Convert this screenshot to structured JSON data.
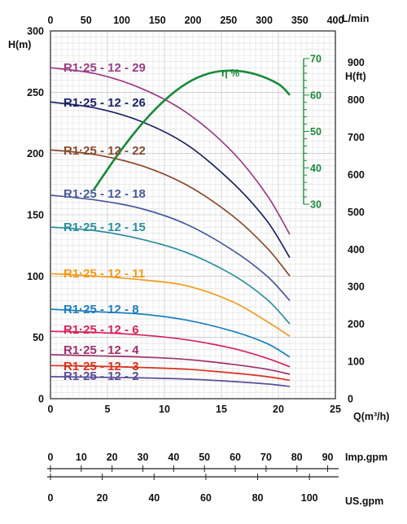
{
  "chart_data": {
    "type": "line",
    "xlabel": "Q(m³/h)",
    "ylabel": "H(m)",
    "x_ticks": [
      "0",
      "5",
      "10",
      "15",
      "20",
      "25"
    ],
    "y_ticks": [
      "0",
      "50",
      "100",
      "150",
      "200",
      "250",
      "300"
    ],
    "xlim": [
      0,
      25
    ],
    "ylim": [
      0,
      300
    ],
    "grid": true,
    "top_axis": {
      "label": "L/min",
      "ticks": [
        "0",
        "50",
        "100",
        "150",
        "200",
        "250",
        "300",
        "350",
        "400"
      ]
    },
    "right_axis": {
      "label": "H(ft)",
      "ticks": [
        "0",
        "100",
        "200",
        "300",
        "400",
        "500",
        "600",
        "700",
        "800",
        "900"
      ]
    },
    "efficiency_axis": {
      "label": "η %",
      "ticks": [
        "30",
        "40",
        "50",
        "60",
        "70"
      ],
      "range": [
        30,
        70
      ],
      "color": "#1a8a3a"
    },
    "bottom_scales": [
      {
        "label": "Imp.gpm",
        "ticks": [
          "0",
          "10",
          "20",
          "30",
          "40",
          "50",
          "60",
          "70",
          "80",
          "90"
        ]
      },
      {
        "label": "US.gpm",
        "ticks": [
          "0",
          "20",
          "40",
          "60",
          "80",
          "100"
        ]
      }
    ],
    "series": [
      {
        "name": "R1·25 - 12 - 29",
        "color": "#9b3d86",
        "x": [
          0,
          4,
          8,
          12,
          16,
          19,
          21
        ],
        "values": [
          270,
          265,
          253,
          233,
          201,
          166,
          134
        ]
      },
      {
        "name": "R1·25 - 12 - 26",
        "color": "#1d2466",
        "x": [
          0,
          4,
          8,
          12,
          16,
          19,
          21
        ],
        "values": [
          242,
          237,
          226,
          207,
          176,
          145,
          115
        ]
      },
      {
        "name": "R1·25 - 12 - 22",
        "color": "#8a4a2c",
        "x": [
          0,
          4,
          8,
          12,
          16,
          19,
          21
        ],
        "values": [
          203,
          199,
          190,
          174,
          149,
          123,
          100
        ]
      },
      {
        "name": "R1·25 - 12 - 18",
        "color": "#4a5a9c",
        "x": [
          0,
          4,
          8,
          12,
          16,
          19,
          21
        ],
        "values": [
          166,
          162,
          155,
          142,
          121,
          100,
          80
        ]
      },
      {
        "name": "R1·25 - 12 - 15",
        "color": "#2a8e9e",
        "x": [
          0,
          4,
          8,
          12,
          16,
          19,
          21
        ],
        "values": [
          140,
          137,
          130,
          119,
          101,
          81,
          61
        ]
      },
      {
        "name": "R1·25 - 12 - 11",
        "color": "#f39a1c",
        "x": [
          0,
          4,
          8,
          12,
          16,
          19,
          21
        ],
        "values": [
          102,
          100,
          97,
          92,
          79,
          63,
          51
        ]
      },
      {
        "name": "R1·25 - 12 - 8",
        "color": "#1c7fbf",
        "x": [
          0,
          4,
          8,
          12,
          16,
          19,
          21
        ],
        "values": [
          73,
          71,
          69,
          64,
          55,
          45,
          34
        ]
      },
      {
        "name": "R1·25 - 12 - 6",
        "color": "#d8235b",
        "x": [
          0,
          4,
          8,
          12,
          16,
          19,
          21
        ],
        "values": [
          55,
          54,
          52,
          48,
          41,
          33,
          26
        ]
      },
      {
        "name": "R1·25 - 12 - 4",
        "color": "#a0306e",
        "x": [
          0,
          4,
          8,
          12,
          16,
          19,
          21
        ],
        "values": [
          36,
          35,
          34,
          32,
          28,
          24,
          20
        ]
      },
      {
        "name": "R1·25 - 12 - 3",
        "color": "#d9321f",
        "x": [
          0,
          4,
          8,
          12,
          16,
          19,
          21
        ],
        "values": [
          27,
          26.5,
          25.5,
          24,
          21,
          18,
          15
        ]
      },
      {
        "name": "R1·25 - 12 - 2",
        "color": "#5a4e9a",
        "x": [
          0,
          4,
          8,
          12,
          16,
          19,
          21
        ],
        "values": [
          18,
          17.5,
          17,
          16,
          14,
          12,
          10
        ]
      },
      {
        "name": "η %",
        "color": "#1a8a3a",
        "x": [
          3.8,
          6,
          8,
          10,
          12,
          14,
          16,
          18,
          20,
          21
        ],
        "values": [
          34,
          44,
          52,
          58.5,
          63.3,
          66,
          66.7,
          65.7,
          63,
          60
        ]
      }
    ]
  }
}
